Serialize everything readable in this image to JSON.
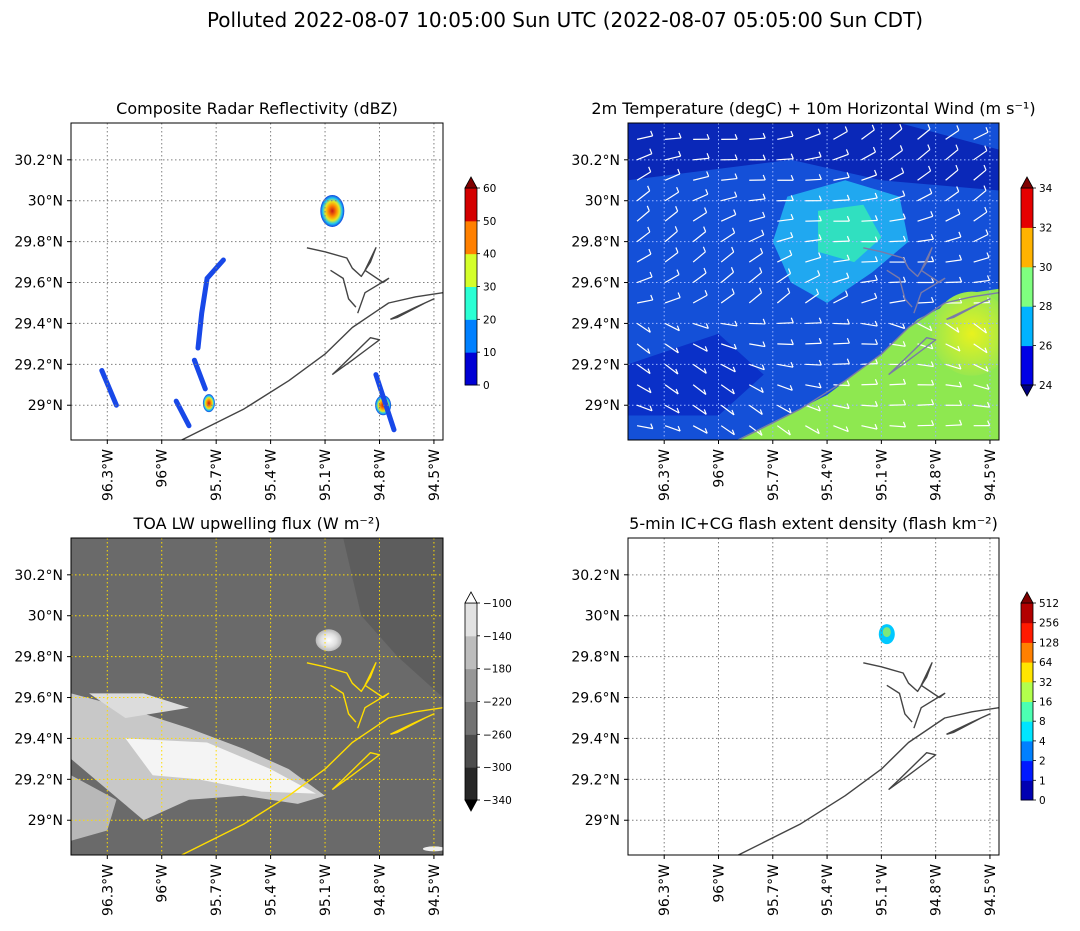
{
  "figure": {
    "scenario": "Polluted",
    "title": "Polluted   2022-08-07 10:05:00 Sun UTC (2022-08-07 05:05:00 Sun CDT)"
  },
  "colors": {
    "frame": "#000000",
    "grid": "#7f7f7f",
    "coast_dark": "#444444",
    "coast_yellow": "#ffdd00",
    "wind_barb": "#ffffff",
    "lw_background": "#6a6a6a",
    "flash_cell": "#00c8ff",
    "radar_core": "#d22020"
  },
  "chart_data": [
    {
      "type": "heatmap",
      "panel": "top-left",
      "title": "Composite Radar Reflectivity (dBZ)",
      "xlabel": "",
      "ylabel": "",
      "xlim": [
        -96.5,
        -94.45
      ],
      "ylim": [
        28.83,
        30.38
      ],
      "x_ticks": [
        -96.3,
        -96.0,
        -95.7,
        -95.4,
        -95.1,
        -94.8,
        -94.5
      ],
      "x_tick_labels": [
        "96.3°W",
        "96°W",
        "95.7°W",
        "95.4°W",
        "95.1°W",
        "94.8°W",
        "94.5°W"
      ],
      "y_ticks": [
        29.0,
        29.2,
        29.4,
        29.6,
        29.8,
        30.0,
        30.2
      ],
      "y_tick_labels": [
        "29°N",
        "29.2°N",
        "29.4°N",
        "29.6°N",
        "29.8°N",
        "30°N",
        "30.2°N"
      ],
      "grid": true,
      "colormap": "jet",
      "colorbar": {
        "ticks": [
          0,
          10,
          20,
          30,
          40,
          50,
          60
        ],
        "tick_labels": [
          "0",
          "10",
          "20",
          "30",
          "40",
          "50",
          "60"
        ],
        "extend": "max"
      },
      "features": [
        {
          "name": "storm cell",
          "lon": -95.06,
          "lat": 29.95,
          "max_value": 55
        },
        {
          "name": "storm cell",
          "lon": -94.78,
          "lat": 29.0,
          "max_value": 45
        },
        {
          "name": "storm cell",
          "lon": -95.74,
          "lat": 29.01,
          "max_value": 40
        },
        {
          "name": "rain band",
          "lon": -95.78,
          "lat": 29.55,
          "max_value": 25
        }
      ]
    },
    {
      "type": "heatmap",
      "panel": "top-right",
      "title": "2m Temperature (degC) + 10m Horizontal Wind (m s⁻¹)",
      "xlabel": "",
      "ylabel": "",
      "xlim": [
        -96.5,
        -94.45
      ],
      "ylim": [
        28.83,
        30.38
      ],
      "x_ticks": [
        -96.3,
        -96.0,
        -95.7,
        -95.4,
        -95.1,
        -94.8,
        -94.5
      ],
      "x_tick_labels": [
        "96.3°W",
        "96°W",
        "95.7°W",
        "95.4°W",
        "95.1°W",
        "94.8°W",
        "94.5°W"
      ],
      "y_ticks": [
        29.0,
        29.2,
        29.4,
        29.6,
        29.8,
        30.0,
        30.2
      ],
      "y_tick_labels": [
        "29°N",
        "29.2°N",
        "29.4°N",
        "29.6°N",
        "29.8°N",
        "30°N",
        "30.2°N"
      ],
      "grid": true,
      "colormap": "jet",
      "colorbar": {
        "ticks": [
          24,
          26,
          28,
          30,
          32,
          34
        ],
        "tick_labels": [
          "24",
          "26",
          "28",
          "30",
          "32",
          "34"
        ],
        "extend": "both"
      },
      "overlay": "wind barbs"
    },
    {
      "type": "heatmap",
      "panel": "bottom-left",
      "title": "TOA LW upwelling flux (W m⁻²)",
      "xlabel": "",
      "ylabel": "",
      "xlim": [
        -96.5,
        -94.45
      ],
      "ylim": [
        28.83,
        30.38
      ],
      "x_ticks": [
        -96.3,
        -96.0,
        -95.7,
        -95.4,
        -95.1,
        -94.8,
        -94.5
      ],
      "x_tick_labels": [
        "96.3°W",
        "96°W",
        "95.7°W",
        "95.4°W",
        "95.1°W",
        "94.8°W",
        "94.5°W"
      ],
      "y_ticks": [
        29.0,
        29.2,
        29.4,
        29.6,
        29.8,
        30.0,
        30.2
      ],
      "y_tick_labels": [
        "29°N",
        "29.2°N",
        "29.4°N",
        "29.6°N",
        "29.8°N",
        "30°N",
        "30.2°N"
      ],
      "grid": true,
      "colormap": "gray",
      "colorbar": {
        "ticks": [
          -340,
          -300,
          -260,
          -220,
          -180,
          -140,
          -100
        ],
        "tick_labels": [
          "−340",
          "−300",
          "−260",
          "−220",
          "−180",
          "−140",
          "−100"
        ],
        "extend": "both"
      }
    },
    {
      "type": "heatmap",
      "panel": "bottom-right",
      "title": "5-min IC+CG flash extent density (flash km⁻²)",
      "xlabel": "",
      "ylabel": "",
      "xlim": [
        -96.5,
        -94.45
      ],
      "ylim": [
        28.83,
        30.38
      ],
      "x_ticks": [
        -96.3,
        -96.0,
        -95.7,
        -95.4,
        -95.1,
        -94.8,
        -94.5
      ],
      "x_tick_labels": [
        "96.3°W",
        "96°W",
        "95.7°W",
        "95.4°W",
        "95.1°W",
        "94.8°W",
        "94.5°W"
      ],
      "y_ticks": [
        29.0,
        29.2,
        29.4,
        29.6,
        29.8,
        30.0,
        30.2
      ],
      "y_tick_labels": [
        "29°N",
        "29.2°N",
        "29.4°N",
        "29.6°N",
        "29.8°N",
        "30°N",
        "30.2°N"
      ],
      "grid": true,
      "colormap": "jet",
      "colorbar": {
        "ticks": [
          0,
          1,
          2,
          4,
          8,
          16,
          32,
          64,
          128,
          256,
          512
        ],
        "tick_labels": [
          "0",
          "1",
          "2",
          "4",
          "8",
          "16",
          "32",
          "64",
          "128",
          "256",
          "512"
        ],
        "extend": "max"
      },
      "features": [
        {
          "name": "flash cell",
          "lon": -95.07,
          "lat": 29.91,
          "max_value": 8
        }
      ]
    }
  ]
}
